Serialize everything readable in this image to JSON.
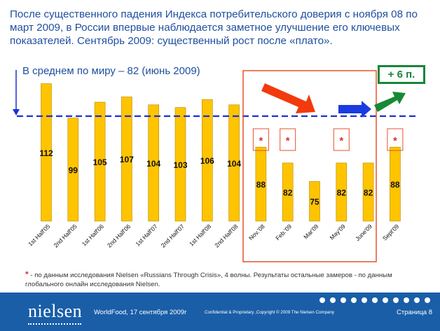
{
  "title": "После существенного падения Индекса потребительского доверия с ноября 08 по март 2009, в России впервые наблюдается заметное улучшение его ключевых показателей. Сентябрь 2009: существенный рост после «плато».",
  "average_label": "В среднем по миру  – 82 (июнь 2009)",
  "increase_label": "+ 6 п.",
  "star_mark": "*",
  "footnote": {
    "star": "*",
    "text": " - по данным исследования Nielsen «Russians Through Crisis», 4 волны. Результаты остальные замеров - по данным глобального онлайн исследования Nielsen."
  },
  "footer": {
    "logo": "nielsen",
    "event": "WorldFood, 17 сентября 2009г",
    "confidential": "Confidential & Proprietary ,Copyright © 2009 The Nielsen Company",
    "page": "Страница 8"
  },
  "colors": {
    "bar": "#FFC400",
    "bar_edge": "#B58A00",
    "avg_line": "#1A2FD8",
    "highlight_box": "#E8502A",
    "arrow_red": "#F23A0C",
    "arrow_blue": "#1B3CE0",
    "arrow_green": "#168A36",
    "title": "#1F4FA0",
    "footer_bg": "#1A5EA8"
  },
  "chart_data": {
    "type": "bar",
    "categories": [
      "1st Half'05",
      "2nd Half'05",
      "1st Half'06",
      "2nd Half'06",
      "1st Half'07",
      "2nd Half'07",
      "1st Half'08",
      "2nd Half'08",
      "Nov.'08",
      "Feb.'09",
      "Mar'09",
      "May'09",
      "June'09",
      "Sept'09"
    ],
    "values": [
      112,
      99,
      105,
      107,
      104,
      103,
      106,
      104,
      88,
      82,
      75,
      82,
      82,
      88
    ],
    "starred": [
      false,
      false,
      false,
      false,
      false,
      false,
      false,
      false,
      true,
      true,
      false,
      true,
      false,
      true
    ],
    "reference_line": 82,
    "ylim": [
      60,
      114
    ],
    "grid": false,
    "legend": "none"
  }
}
